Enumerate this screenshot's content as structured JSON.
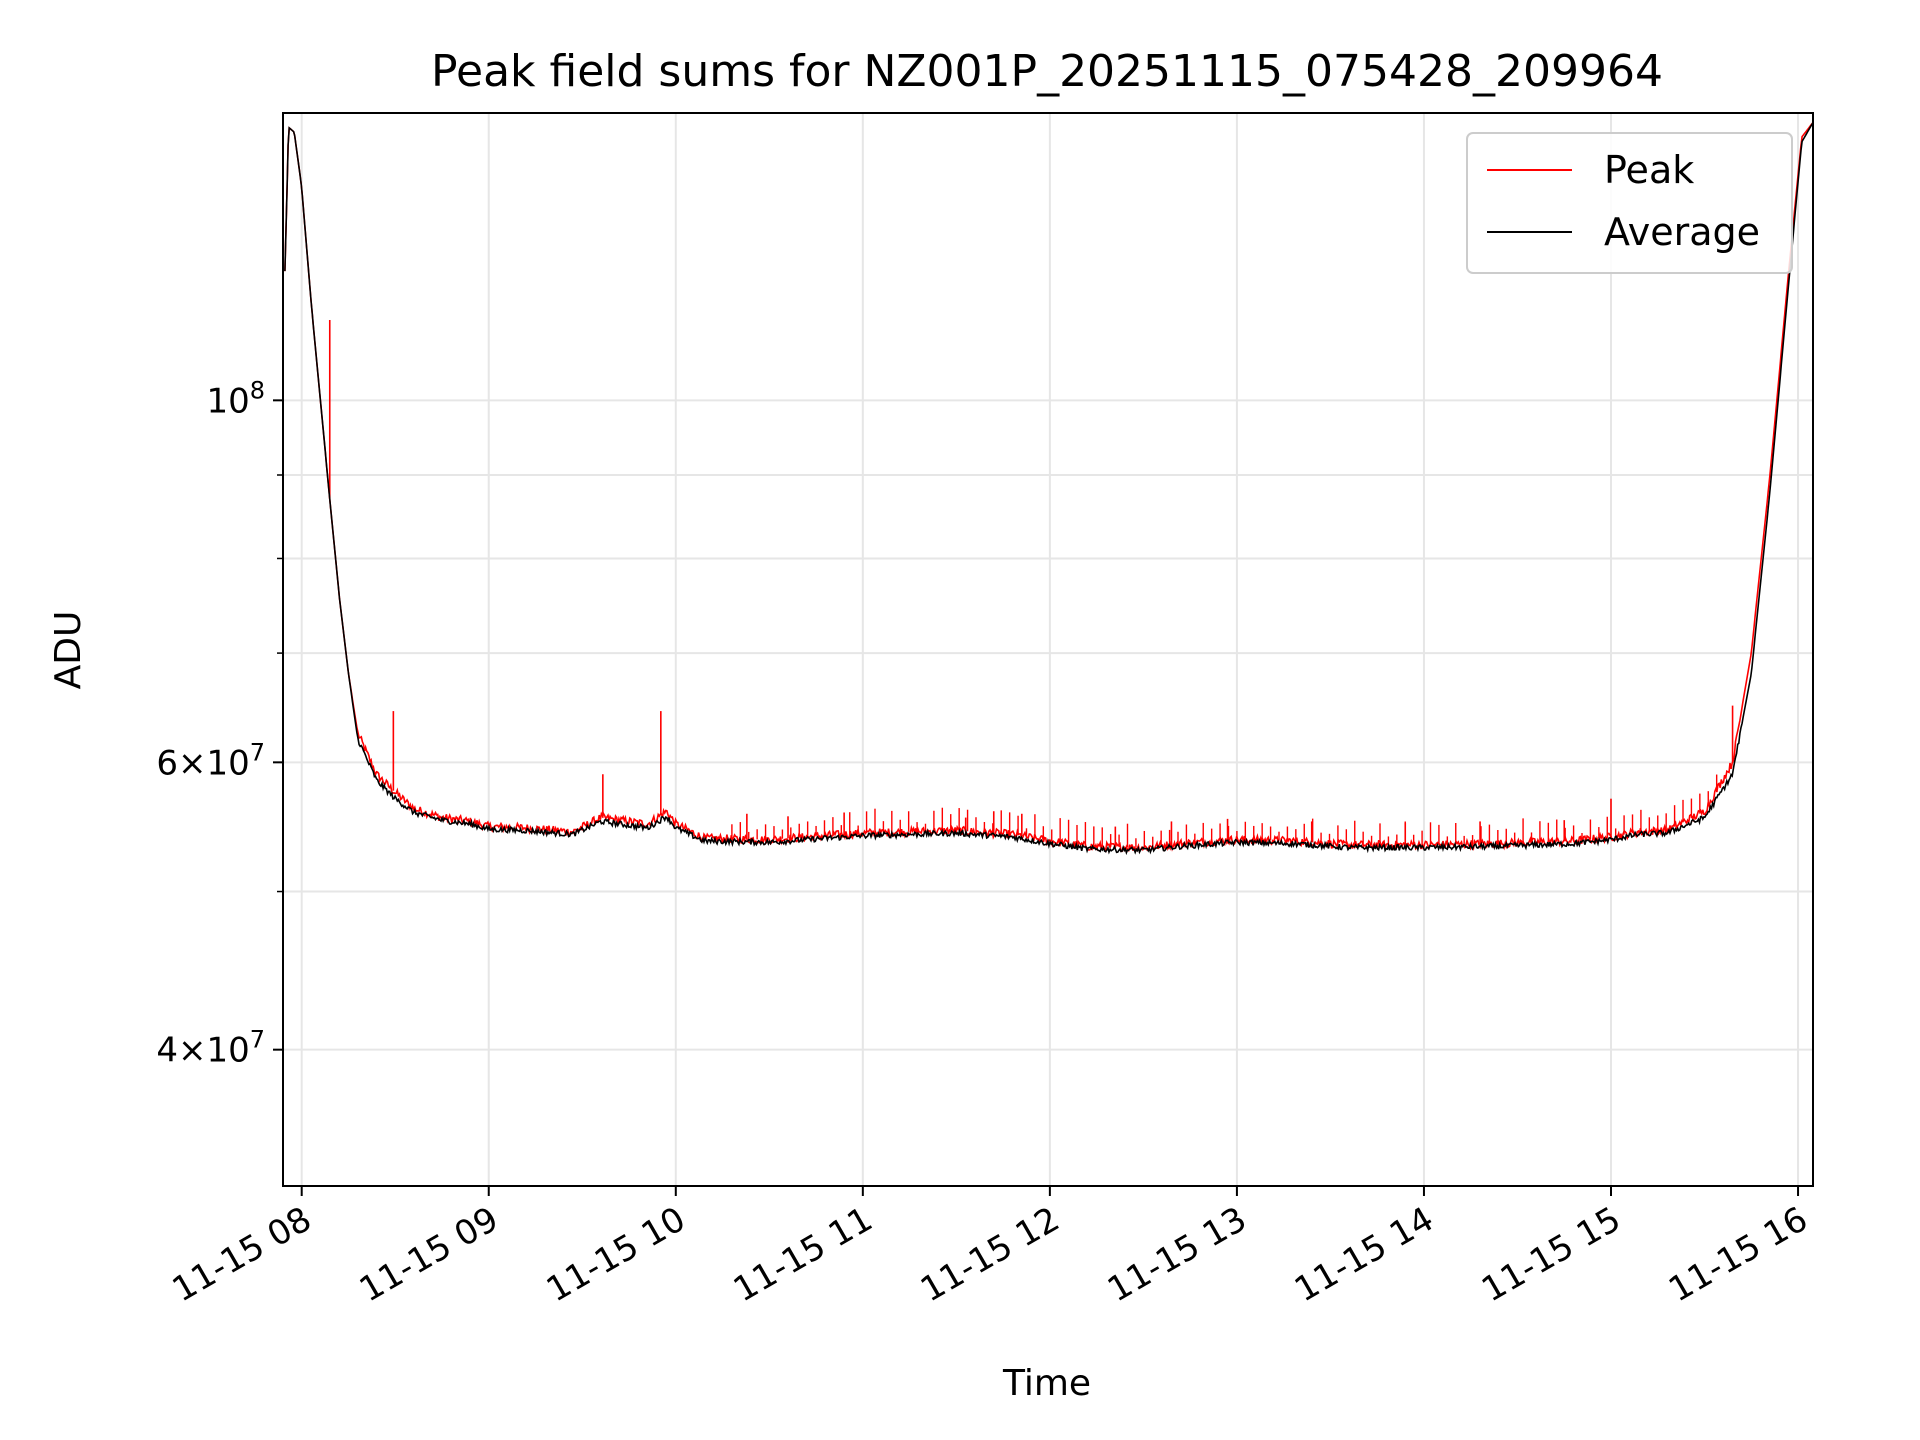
{
  "chart_data": {
    "type": "line",
    "title": "Peak field sums for NZ001P_20251115_075428_209964",
    "xlabel": "Time",
    "ylabel": "ADU",
    "yscale": "log",
    "xlim": [
      7.9,
      16.08
    ],
    "ylim": [
      33000000,
      150000000
    ],
    "grid": true,
    "legend_position": "top-right",
    "x_ticks": [
      {
        "value": 8,
        "label": "11-15 08"
      },
      {
        "value": 9,
        "label": "11-15 09"
      },
      {
        "value": 10,
        "label": "11-15 10"
      },
      {
        "value": 11,
        "label": "11-15 11"
      },
      {
        "value": 12,
        "label": "11-15 12"
      },
      {
        "value": 13,
        "label": "11-15 13"
      },
      {
        "value": 14,
        "label": "11-15 14"
      },
      {
        "value": 15,
        "label": "11-15 15"
      },
      {
        "value": 16,
        "label": "11-15 16"
      }
    ],
    "y_major_ticks": [
      {
        "value": 100000000,
        "base": "10",
        "exp": "8",
        "mantissa": ""
      },
      {
        "value": 60000000,
        "base": "10",
        "exp": "7",
        "mantissa": "6"
      },
      {
        "value": 40000000,
        "base": "10",
        "exp": "7",
        "mantissa": "4"
      }
    ],
    "y_minor_ticks": [
      50000000,
      70000000,
      80000000,
      90000000
    ],
    "series": [
      {
        "name": "Peak",
        "color": "#ff0000",
        "points": [
          [
            7.91,
            120000000
          ],
          [
            7.93,
            147000000
          ],
          [
            7.96,
            146000000
          ],
          [
            8.0,
            135000000
          ],
          [
            8.05,
            115000000
          ],
          [
            8.1,
            100000000
          ],
          [
            8.15,
            87000000
          ],
          [
            8.2,
            76000000
          ],
          [
            8.25,
            68000000
          ],
          [
            8.3,
            62500000
          ],
          [
            8.4,
            59000000
          ],
          [
            8.5,
            57500000
          ],
          [
            8.6,
            56200000
          ],
          [
            8.75,
            55500000
          ],
          [
            8.9,
            55200000
          ],
          [
            9.0,
            54800000
          ],
          [
            9.2,
            54700000
          ],
          [
            9.45,
            54400000
          ],
          [
            9.6,
            55500000
          ],
          [
            9.75,
            55200000
          ],
          [
            9.85,
            55000000
          ],
          [
            9.95,
            56000000
          ],
          [
            10.0,
            55000000
          ],
          [
            10.15,
            53900000
          ],
          [
            10.5,
            53800000
          ],
          [
            10.7,
            54000000
          ],
          [
            11.0,
            54300000
          ],
          [
            11.5,
            54500000
          ],
          [
            11.8,
            54200000
          ],
          [
            12.0,
            53700000
          ],
          [
            12.2,
            53300000
          ],
          [
            12.5,
            53200000
          ],
          [
            12.7,
            53500000
          ],
          [
            13.0,
            53800000
          ],
          [
            13.3,
            53700000
          ],
          [
            13.6,
            53400000
          ],
          [
            14.0,
            53400000
          ],
          [
            14.4,
            53500000
          ],
          [
            14.8,
            53700000
          ],
          [
            15.0,
            54000000
          ],
          [
            15.15,
            54400000
          ],
          [
            15.3,
            54500000
          ],
          [
            15.5,
            56000000
          ],
          [
            15.65,
            60000000
          ],
          [
            15.75,
            70000000
          ],
          [
            15.85,
            90000000
          ],
          [
            15.95,
            120000000
          ],
          [
            16.02,
            145000000
          ],
          [
            16.08,
            148000000
          ]
        ],
        "spikes": [
          [
            8.15,
            112000000
          ],
          [
            8.49,
            64500000
          ],
          [
            9.61,
            59000000
          ],
          [
            9.92,
            64500000
          ],
          [
            10.38,
            55800000
          ],
          [
            10.6,
            55600000
          ],
          [
            10.9,
            55900000
          ],
          [
            11.55,
            55500000
          ],
          [
            11.7,
            56000000
          ],
          [
            11.85,
            55800000
          ],
          [
            12.35,
            54800000
          ],
          [
            12.65,
            55200000
          ],
          [
            12.95,
            55400000
          ],
          [
            13.4,
            55200000
          ],
          [
            13.9,
            55100000
          ],
          [
            14.3,
            55200000
          ],
          [
            14.75,
            55300000
          ],
          [
            15.0,
            57000000
          ],
          [
            15.65,
            65000000
          ]
        ]
      },
      {
        "name": "Average",
        "color": "#000000",
        "points": [
          [
            7.91,
            120000000
          ],
          [
            7.93,
            147000000
          ],
          [
            7.96,
            146000000
          ],
          [
            8.0,
            135000000
          ],
          [
            8.05,
            115000000
          ],
          [
            8.1,
            100000000
          ],
          [
            8.15,
            87000000
          ],
          [
            8.2,
            76000000
          ],
          [
            8.25,
            68000000
          ],
          [
            8.3,
            62000000
          ],
          [
            8.4,
            58500000
          ],
          [
            8.5,
            57000000
          ],
          [
            8.6,
            55900000
          ],
          [
            8.75,
            55300000
          ],
          [
            8.9,
            55000000
          ],
          [
            9.0,
            54600000
          ],
          [
            9.2,
            54500000
          ],
          [
            9.45,
            54200000
          ],
          [
            9.6,
            55200000
          ],
          [
            9.75,
            54900000
          ],
          [
            9.85,
            54700000
          ],
          [
            9.95,
            55600000
          ],
          [
            10.0,
            54700000
          ],
          [
            10.15,
            53700000
          ],
          [
            10.5,
            53600000
          ],
          [
            10.7,
            53800000
          ],
          [
            11.0,
            54100000
          ],
          [
            11.5,
            54300000
          ],
          [
            11.8,
            54000000
          ],
          [
            12.0,
            53500000
          ],
          [
            12.2,
            53100000
          ],
          [
            12.5,
            53000000
          ],
          [
            12.7,
            53300000
          ],
          [
            13.0,
            53600000
          ],
          [
            13.3,
            53500000
          ],
          [
            13.6,
            53200000
          ],
          [
            14.0,
            53200000
          ],
          [
            14.4,
            53300000
          ],
          [
            14.8,
            53500000
          ],
          [
            15.0,
            53800000
          ],
          [
            15.15,
            54200000
          ],
          [
            15.3,
            54300000
          ],
          [
            15.5,
            55500000
          ],
          [
            15.65,
            59000000
          ],
          [
            15.75,
            68000000
          ],
          [
            15.85,
            88000000
          ],
          [
            15.95,
            118000000
          ],
          [
            16.02,
            144000000
          ],
          [
            16.08,
            148000000
          ]
        ]
      }
    ]
  }
}
